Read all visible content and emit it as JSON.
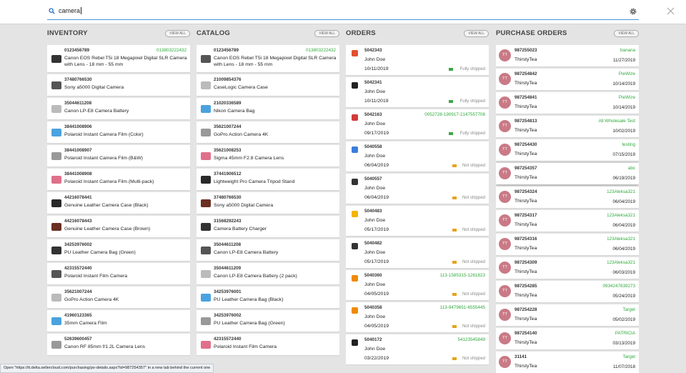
{
  "search": {
    "query": "camera"
  },
  "columns": [
    {
      "title": "INVENTORY",
      "view_all": "VIEW ALL",
      "items": [
        {
          "id": "0123456789",
          "title": "Canon EOS Rebel T5i 18 Megapixel Digital SLR Camera with Lens - 18 mm - 55 mm",
          "code": "013803222432"
        },
        {
          "id": "37480766530",
          "title": "Sony a5000 Digital Camera"
        },
        {
          "id": "35044611208",
          "title": "Canon LP-E8 Camera Battery"
        },
        {
          "id": "38441008906",
          "title": "Polaroid Instant Camera Film (Color)"
        },
        {
          "id": "38441008907",
          "title": "Polaroid Instant Camera Film (B&W)"
        },
        {
          "id": "38441008908",
          "title": "Polaroid Instant Camera Film (Multi-pack)"
        },
        {
          "id": "44216078441",
          "title": "Genuine Leather Camera Case (Black)"
        },
        {
          "id": "44216078443",
          "title": "Genuine Leather Camera Case (Brown)"
        },
        {
          "id": "34253976002",
          "title": "PU Leather Camera Bag (Green)"
        },
        {
          "id": "42315572440",
          "title": "Polaroid Instant Film Camera"
        },
        {
          "id": "35621007244",
          "title": "GoPro Action Camera 4K"
        },
        {
          "id": "41960123365",
          "title": "35mm Camera Film"
        },
        {
          "id": "52639600457",
          "title": "Canon RF 85mm f/1.2L Camera Lens"
        }
      ]
    },
    {
      "title": "CATALOG",
      "view_all": "VIEW ALL",
      "items": [
        {
          "id": "0123456789",
          "title": "Canon EOS Rebel T5i 18 Megapixel Digital SLR Camera with Lens - 18 mm - 55 mm",
          "code": "013803222432"
        },
        {
          "id": "21009854376",
          "title": "CaseLogic Camera Case"
        },
        {
          "id": "21020336589",
          "title": "Nikon Camera Bag"
        },
        {
          "id": "35621007244",
          "title": "GoPro Action Camera 4K"
        },
        {
          "id": "35621008253",
          "title": "Sigma 45mm F2.8 Camera Lens"
        },
        {
          "id": "37441906512",
          "title": "Lightweight Pro Camera Tripod Stand"
        },
        {
          "id": "37480766530",
          "title": "Sony a5000 Digital Camera"
        },
        {
          "id": "31568292243",
          "title": "Camera Battery Charger"
        },
        {
          "id": "35044611208",
          "title": "Canon LP-E8 Camera Battery"
        },
        {
          "id": "35044611209",
          "title": "Canon LP-E8 Camera Battery (2 pack)"
        },
        {
          "id": "34253976001",
          "title": "PU Leather Camera Bag (Black)"
        },
        {
          "id": "34253976002",
          "title": "PU Leather Camera Bag (Green)"
        },
        {
          "id": "42315572440",
          "title": "Polaroid Instant Film Camera"
        }
      ]
    },
    {
      "title": "ORDERS",
      "view_all": "VIEW ALL",
      "items": [
        {
          "id": "5042343",
          "name": "John Doe",
          "date": "10/11/2019",
          "status": "Fully shipped"
        },
        {
          "id": "5042341",
          "name": "John Doe",
          "date": "10/11/2019",
          "status": "Fully shipped"
        },
        {
          "id": "5042163",
          "ref": "0052728-190917-2147557708",
          "name": "John Doe",
          "date": "09/17/2019",
          "status": "Fully shipped"
        },
        {
          "id": "5040558",
          "name": "John Doe",
          "date": "06/04/2019",
          "status": "Not shipped"
        },
        {
          "id": "5040557",
          "name": "John Doe",
          "date": "06/04/2019",
          "status": "Not shipped"
        },
        {
          "id": "5040483",
          "name": "John Doe",
          "date": "05/17/2019",
          "status": "Not shipped"
        },
        {
          "id": "5040482",
          "name": "John Doe",
          "date": "05/17/2019",
          "status": "Not shipped"
        },
        {
          "id": "5040360",
          "ref": "113-1585315-1261823",
          "name": "John Doe",
          "date": "04/05/2019",
          "status": "Not shipped"
        },
        {
          "id": "5040358",
          "ref": "113-9479651-6555445",
          "name": "John Doe",
          "date": "04/05/2019",
          "status": "Not shipped"
        },
        {
          "id": "5040172",
          "ref": "54123545849",
          "name": "John Doe",
          "date": "03/22/2019",
          "status": "Not shipped"
        }
      ]
    },
    {
      "title": "PURCHASE ORDERS",
      "view_all": "VIEW ALL",
      "items": [
        {
          "avatar": "TT",
          "id": "987255023",
          "vendor": "banana",
          "company": "ThirstyTea",
          "date": "11/27/2019"
        },
        {
          "avatar": "TT",
          "id": "987254842",
          "vendor": "PieWize",
          "company": "ThirstyTea",
          "date": "10/14/2019"
        },
        {
          "avatar": "TT",
          "id": "987254841",
          "vendor": "PieWize",
          "company": "ThirstyTea",
          "date": "10/14/2019"
        },
        {
          "avatar": "TT",
          "id": "987254813",
          "vendor": "All Wholesale Test",
          "company": "ThirstyTea",
          "date": "10/02/2019"
        },
        {
          "avatar": "TT",
          "id": "987254430",
          "vendor": "testing",
          "company": "ThirstyTea",
          "date": "07/15/2019"
        },
        {
          "avatar": "TT",
          "id": "987254357",
          "vendor": "abc",
          "company": "ThirstyTea",
          "date": "06/19/2019"
        },
        {
          "avatar": "TT",
          "id": "987254324",
          "vendor": "123Aleksa321",
          "company": "ThirstyTea",
          "date": "06/04/2019"
        },
        {
          "avatar": "TT",
          "id": "987254317",
          "vendor": "123Aleksa321",
          "company": "ThirstyTea",
          "date": "06/04/2019"
        },
        {
          "avatar": "TT",
          "id": "987254316",
          "vendor": "123Aleksa321",
          "company": "ThirstyTea",
          "date": "06/04/2019"
        },
        {
          "avatar": "TT",
          "id": "987254309",
          "vendor": "123Aleksa321",
          "company": "ThirstyTea",
          "date": "06/03/2019"
        },
        {
          "avatar": "TT",
          "id": "987254285",
          "vendor": "0934247839273",
          "company": "ThirstyTea",
          "date": "05/24/2019"
        },
        {
          "avatar": "TT",
          "id": "987254228",
          "vendor": "Target",
          "company": "ThirstyTea",
          "date": "05/02/2019"
        },
        {
          "avatar": "TT",
          "id": "987254140",
          "vendor": "PATRICIA",
          "company": "ThirstyTea",
          "date": "03/13/2019"
        },
        {
          "avatar": "TT",
          "id": "31141",
          "vendor": "Target",
          "company": "ThirstyTea",
          "date": "11/07/2018"
        }
      ]
    }
  ],
  "status_bar": "Open \"https://tt.delta.sellercloud.com/purchasing/po-details.aspx?id=987254357\" in a new tab behind the current one"
}
